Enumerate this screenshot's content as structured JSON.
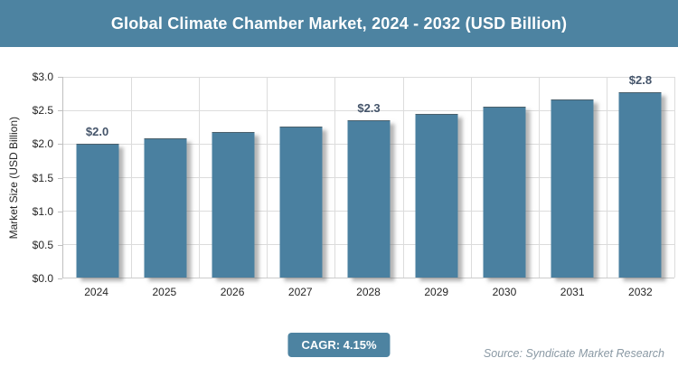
{
  "title": "Global Climate Chamber Market, 2024 - 2032 (USD Billion)",
  "chart_data": {
    "type": "bar",
    "categories": [
      "2024",
      "2025",
      "2026",
      "2027",
      "2028",
      "2029",
      "2030",
      "2031",
      "2032"
    ],
    "values": [
      2.0,
      2.08,
      2.17,
      2.26,
      2.35,
      2.45,
      2.55,
      2.66,
      2.77
    ],
    "data_labels": [
      "$2.0",
      "",
      "",
      "",
      "$2.3",
      "",
      "",
      "",
      "$2.8"
    ],
    "title": "Global Climate Chamber Market, 2024 - 2032 (USD Billion)",
    "xlabel": "",
    "ylabel": "Market Size (USD Billion)",
    "ylim": [
      0,
      3.0
    ],
    "ytick_step": 0.5,
    "ytick_labels": [
      "$0.0",
      "$0.5",
      "$1.0",
      "$1.5",
      "$2.0",
      "$2.5",
      "$3.0"
    ],
    "grid": true,
    "legend": "none",
    "bar_color": "#4a80a0"
  },
  "footer": {
    "cagr_label": "CAGR: 4.15%",
    "source": "Source: Syndicate Market Research"
  },
  "colors": {
    "header_bg": "#4d83a1",
    "header_text": "#ffffff",
    "bar_fill": "#4a80a0",
    "data_label": "#44546a",
    "axis_text": "#262626",
    "gridline": "#dcdcdc",
    "axis_line": "#bfbfbf",
    "badge_bg": "#4d83a1",
    "source_text": "#8a99a4"
  }
}
